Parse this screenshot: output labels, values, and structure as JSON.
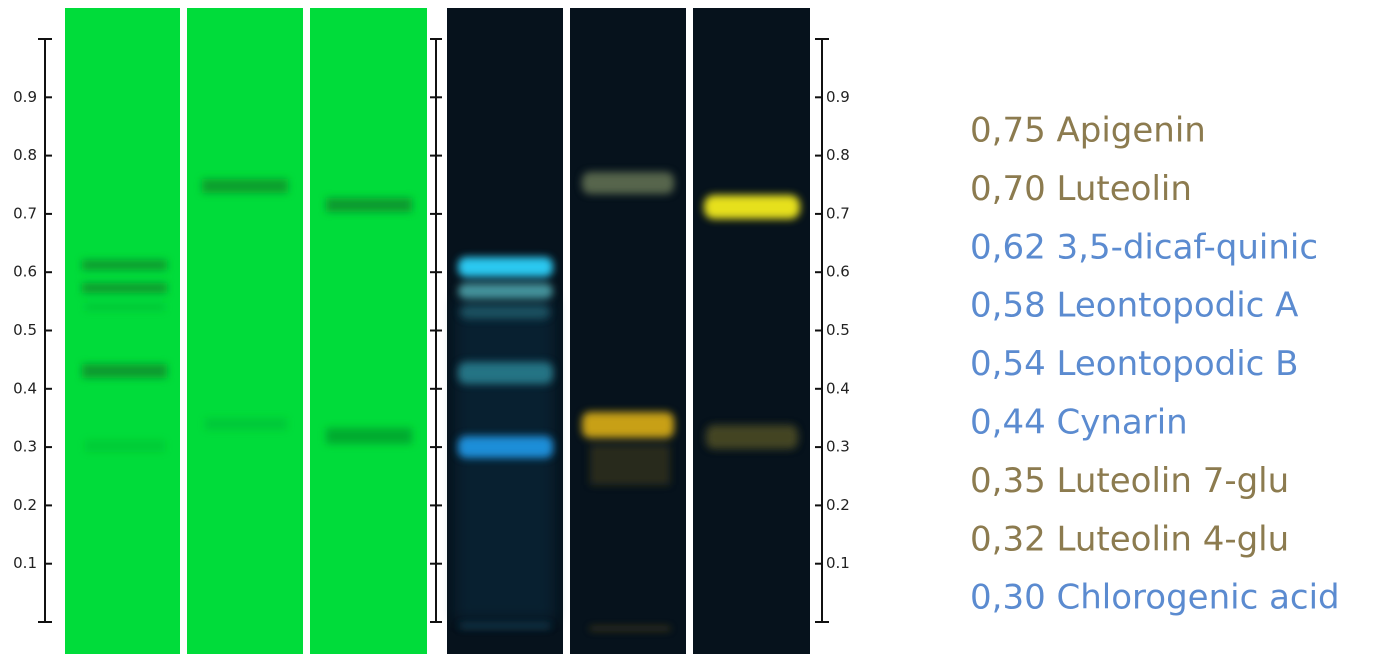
{
  "scale_left": {
    "ticks": [
      0.9,
      0.8,
      0.7,
      0.6,
      0.5,
      0.4,
      0.3,
      0.2,
      0.1
    ]
  },
  "scale_right": {
    "ticks": [
      0.9,
      0.8,
      0.7,
      0.6,
      0.5,
      0.4,
      0.3,
      0.2,
      0.1
    ]
  },
  "legend": [
    {
      "text": "0,75 Apigenin",
      "color": "#8c7b4f"
    },
    {
      "text": "0,70 Luteolin",
      "color": "#8c7b4f"
    },
    {
      "text": "0,62 3,5-dicaf-quinic",
      "color": "#5b8bd0"
    },
    {
      "text": "0,58 Leontopodic A",
      "color": "#5b8bd0"
    },
    {
      "text": "0,54 Leontopodic B",
      "color": "#5b8bd0"
    },
    {
      "text": "0,44 Cynarin",
      "color": "#5b8bd0"
    },
    {
      "text": "0,35 Luteolin 7-glu",
      "color": "#8c7b4f"
    },
    {
      "text": "0,32 Luteolin 4-glu",
      "color": "#8c7b4f"
    },
    {
      "text": "0,30 Chlorogenic acid",
      "color": "#5b8bd0"
    }
  ]
}
